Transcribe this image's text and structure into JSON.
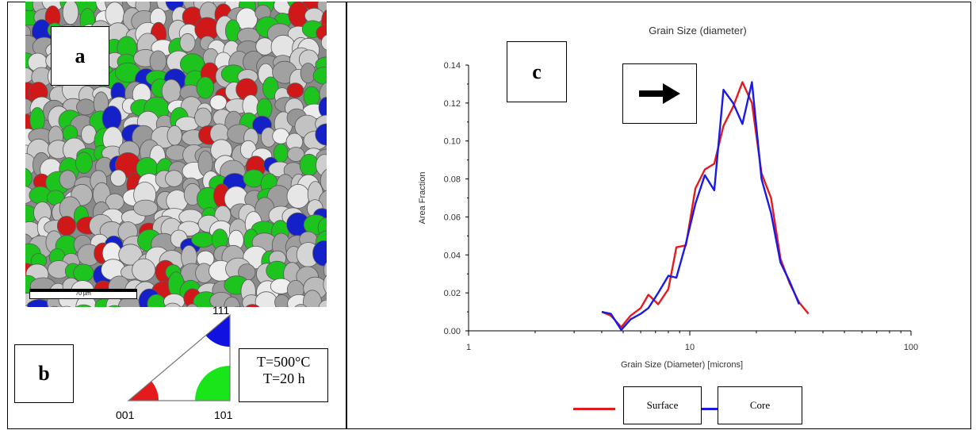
{
  "panel_a": {
    "label": "a",
    "scale_bar_text": "70 µm",
    "colors": {
      "red": "#d01818",
      "green": "#1ec41e",
      "blue": "#1420c8",
      "gray": "#a8a8a8"
    }
  },
  "panel_b": {
    "label": "b",
    "vertex_labels": {
      "top": "111",
      "bottom_left": "001",
      "bottom_right": "101"
    },
    "conditions": {
      "temperature": "T=500°C",
      "time": "T=20 h"
    }
  },
  "panel_c": {
    "label": "c",
    "arrow_icon": "right-arrow-icon"
  },
  "chart_data": {
    "type": "line",
    "title": "Grain Size (diameter)",
    "xlabel": "Grain Size (Diameter) [microns]",
    "ylabel": "Area Fraction",
    "xscale": "log",
    "xlim": [
      1,
      100
    ],
    "ylim": [
      0,
      0.14
    ],
    "xticks": [
      "1",
      "10",
      "100"
    ],
    "yticks": [
      "0.00",
      "0.02",
      "0.04",
      "0.06",
      "0.08",
      "0.10",
      "0.12",
      "0.14"
    ],
    "grid": false,
    "legend_position": "bottom",
    "series": [
      {
        "name": "Surface",
        "color": "#e41a1c",
        "x": [
          4.0,
          4.4,
          4.9,
          5.4,
          6.0,
          6.5,
          7.2,
          8.0,
          8.7,
          9.6,
          10.6,
          11.7,
          12.9,
          14.2,
          15.7,
          17.3,
          19.1,
          21.1,
          23.3,
          25.7,
          28.3,
          31.2,
          34.4
        ],
        "y": [
          0.01,
          0.008,
          0.002,
          0.008,
          0.012,
          0.019,
          0.014,
          0.022,
          0.044,
          0.045,
          0.075,
          0.085,
          0.088,
          0.108,
          0.118,
          0.131,
          0.12,
          0.083,
          0.07,
          0.038,
          0.025,
          0.015,
          0.009
        ]
      },
      {
        "name": "Core",
        "color": "#1a1ae6",
        "x": [
          4.0,
          4.4,
          4.9,
          5.4,
          6.0,
          6.5,
          7.2,
          8.0,
          8.7,
          9.6,
          10.6,
          11.7,
          12.9,
          14.2,
          15.7,
          17.3,
          19.1,
          21.1,
          23.3,
          25.7,
          28.3,
          31.2
        ],
        "y": [
          0.01,
          0.009,
          0.0005,
          0.006,
          0.009,
          0.012,
          0.02,
          0.029,
          0.028,
          0.046,
          0.067,
          0.082,
          0.074,
          0.127,
          0.12,
          0.109,
          0.131,
          0.08,
          0.062,
          0.036,
          0.026,
          0.014
        ]
      }
    ]
  }
}
